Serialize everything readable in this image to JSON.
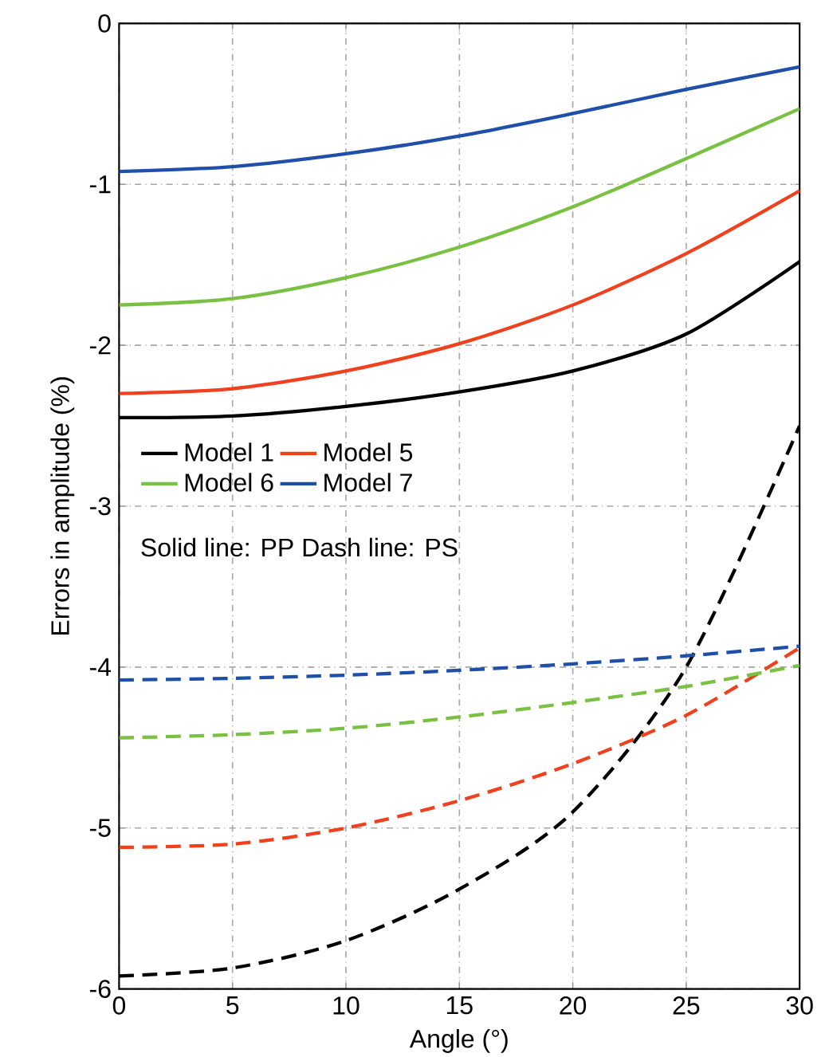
{
  "chart_data": {
    "type": "line",
    "xlabel": "Angle (°)",
    "ylabel": "Errors in amplitude (%)",
    "xlim": [
      0,
      30
    ],
    "ylim": [
      -6,
      0
    ],
    "xticks": [
      0,
      5,
      10,
      15,
      20,
      25,
      30
    ],
    "yticks": [
      -6,
      -5,
      -4,
      -3,
      -2,
      -1,
      0
    ],
    "grid": true,
    "legend": "left",
    "annotations": [
      "Solid line: PP   Dash line: PS"
    ],
    "x": [
      0,
      5,
      10,
      15,
      20,
      25,
      30
    ],
    "series": [
      {
        "name": "Model 1",
        "color": "#000000",
        "line_style": "solid",
        "values": [
          -2.45,
          -2.44,
          -2.38,
          -2.29,
          -2.16,
          -1.93,
          -1.48
        ]
      },
      {
        "name": "Model 5",
        "color": "#f0401e",
        "line_style": "solid",
        "values": [
          -2.3,
          -2.27,
          -2.16,
          -1.99,
          -1.75,
          -1.43,
          -1.04
        ]
      },
      {
        "name": "Model 6",
        "color": "#7ac143",
        "line_style": "solid",
        "values": [
          -1.75,
          -1.71,
          -1.58,
          -1.39,
          -1.14,
          -0.84,
          -0.53
        ]
      },
      {
        "name": "Model 7",
        "color": "#1f4fa8",
        "line_style": "solid",
        "values": [
          -0.92,
          -0.89,
          -0.81,
          -0.7,
          -0.56,
          -0.41,
          -0.27
        ]
      },
      {
        "color": "#000000",
        "line_style": "dashed",
        "values": [
          -5.92,
          -5.87,
          -5.7,
          -5.38,
          -4.9,
          -4.0,
          -2.5
        ]
      },
      {
        "color": "#f0401e",
        "line_style": "dashed",
        "values": [
          -5.12,
          -5.1,
          -5.0,
          -4.83,
          -4.6,
          -4.3,
          -3.88
        ]
      },
      {
        "color": "#7ac143",
        "line_style": "dashed",
        "values": [
          -4.44,
          -4.42,
          -4.38,
          -4.31,
          -4.22,
          -4.12,
          -3.99
        ]
      },
      {
        "color": "#1f4fa8",
        "line_style": "dashed",
        "values": [
          -4.08,
          -4.07,
          -4.05,
          -4.02,
          -3.98,
          -3.93,
          -3.87
        ]
      }
    ]
  }
}
